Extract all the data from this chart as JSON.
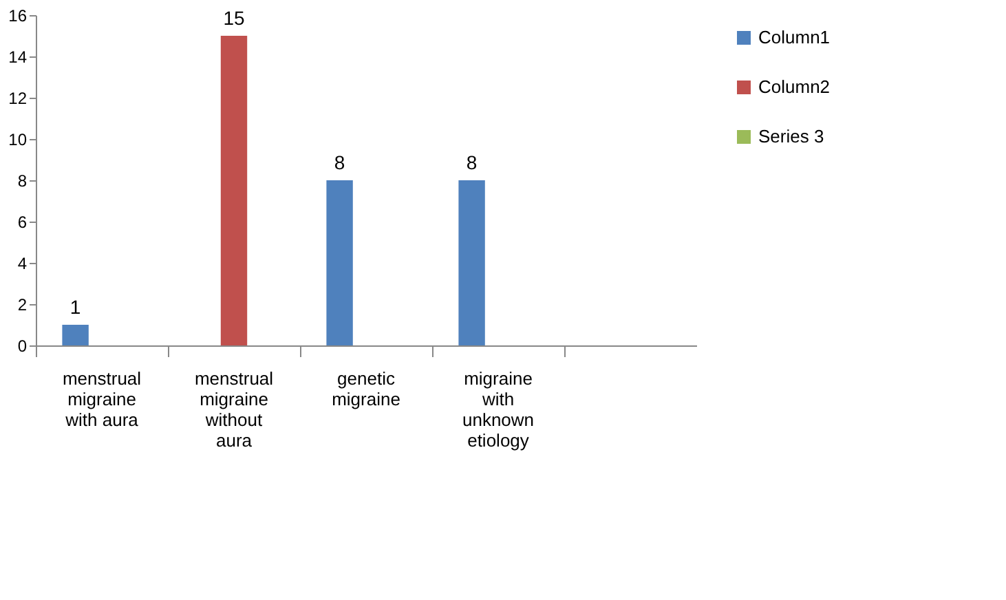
{
  "chart_data": {
    "type": "bar",
    "categories": [
      "menstrual migraine with aura",
      "menstrual migraine without aura",
      "genetic migraine",
      "migraine with unknown etiology",
      null
    ],
    "series": [
      {
        "name": "Column1",
        "color": "#4f81bd",
        "values": [
          1,
          null,
          8,
          8,
          null
        ],
        "value_labels": [
          "1",
          null,
          "8",
          "8",
          null
        ]
      },
      {
        "name": "Column2",
        "color": "#c0504d",
        "values": [
          null,
          15,
          null,
          null,
          null
        ],
        "value_labels": [
          null,
          "15",
          null,
          null,
          null
        ]
      },
      {
        "name": "Series 3",
        "color": "#9bbb59",
        "values": [
          null,
          null,
          null,
          null,
          null
        ]
      }
    ],
    "ylim": [
      0,
      16
    ],
    "yticks": [
      0,
      2,
      4,
      6,
      8,
      10,
      12,
      14,
      16
    ],
    "grid": false,
    "legend": "right"
  }
}
